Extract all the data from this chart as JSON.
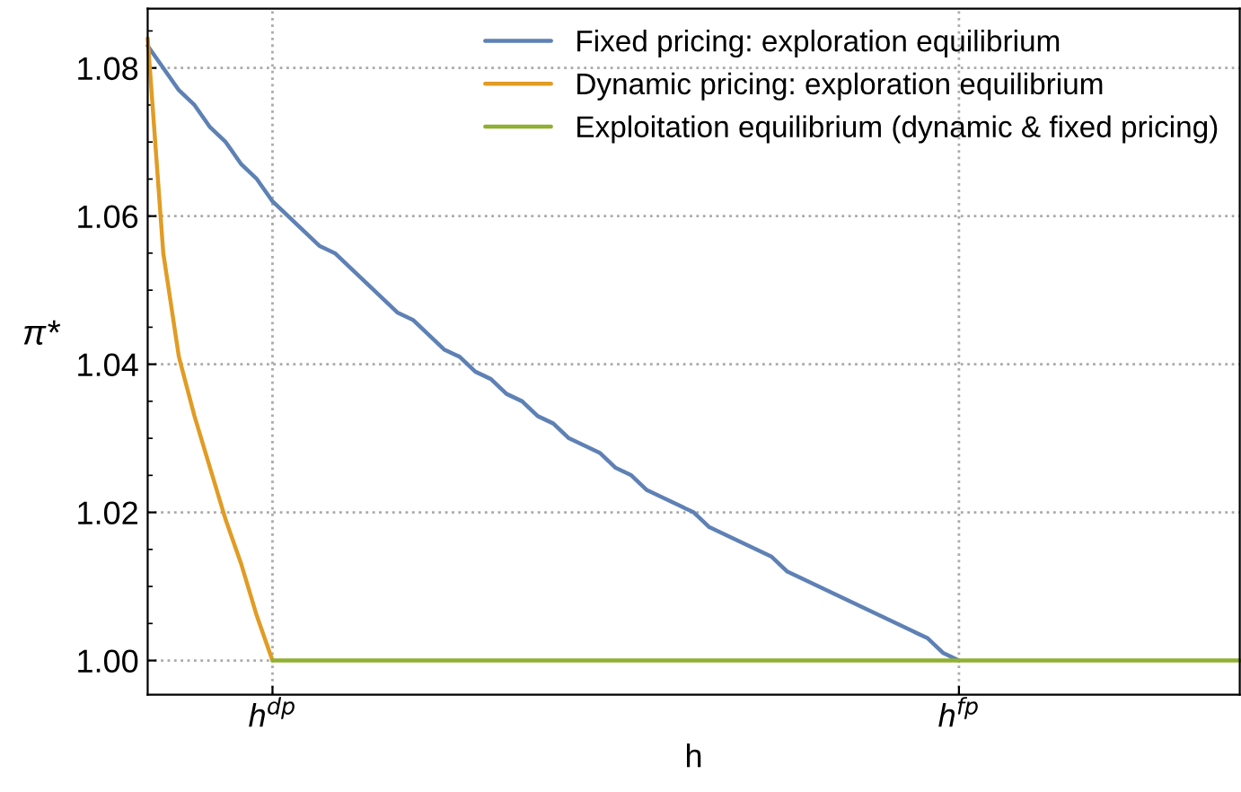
{
  "chart_data": {
    "type": "line",
    "xlabel": "h",
    "ylabel": "π*",
    "categories": [
      null,
      null,
      null,
      null,
      null,
      null,
      null,
      null,
      "h$^{dp}$",
      null,
      null,
      null,
      null,
      null,
      null,
      null,
      null,
      null,
      null,
      null,
      null,
      null,
      null,
      null,
      null,
      null,
      null,
      null,
      null,
      null,
      null,
      null,
      null,
      null,
      null,
      null,
      null,
      null,
      null,
      null,
      null,
      null,
      null,
      null,
      null,
      null,
      null,
      null,
      null,
      null,
      null,
      null,
      "h$^{fp}$",
      null,
      null,
      null,
      null,
      null,
      null,
      null,
      null,
      null,
      null,
      null,
      null,
      null,
      null,
      null,
      null,
      null,
      null
    ],
    "ylim": [
      0.9954,
      1.088
    ],
    "yticks": [
      {
        "value": 1.0,
        "label": "1.00"
      },
      {
        "value": 1.02,
        "label": "1.02"
      },
      {
        "value": 1.04,
        "label": "1.04"
      },
      {
        "value": 1.06,
        "label": "1.06"
      },
      {
        "value": 1.08,
        "label": "1.08"
      }
    ],
    "grid": true,
    "legend": "top right",
    "line_style": "solid",
    "marker": "none",
    "series": [
      {
        "name": "Fixed pricing: exploration equilibrium",
        "color": "#5e81b5",
        "values": [
          1.083,
          1.08,
          1.077,
          1.075,
          1.072,
          1.07,
          1.067,
          1.065,
          1.062,
          1.06,
          1.058,
          1.056,
          1.055,
          1.053,
          1.051,
          1.049,
          1.047,
          1.046,
          1.044,
          1.042,
          1.041,
          1.039,
          1.038,
          1.036,
          1.035,
          1.033,
          1.032,
          1.03,
          1.029,
          1.028,
          1.026,
          1.025,
          1.023,
          1.022,
          1.021,
          1.02,
          1.018,
          1.017,
          1.016,
          1.015,
          1.014,
          1.012,
          1.011,
          1.01,
          1.009,
          1.008,
          1.007,
          1.006,
          1.005,
          1.004,
          1.003,
          1.001,
          1.0,
          null,
          null,
          null,
          null,
          null,
          null,
          null,
          null,
          null,
          null,
          null,
          null,
          null,
          null,
          null,
          null,
          null,
          null
        ]
      },
      {
        "name": "Dynamic pricing: exploration equilibrium",
        "color": "#e19c24",
        "values": [
          1.084,
          1.055,
          1.041,
          1.033,
          1.026,
          1.019,
          1.013,
          1.006,
          1.0,
          null,
          null,
          null,
          null,
          null,
          null,
          null,
          null,
          null,
          null,
          null,
          null,
          null,
          null,
          null,
          null,
          null,
          null,
          null,
          null,
          null,
          null,
          null,
          null,
          null,
          null,
          null,
          null,
          null,
          null,
          null,
          null,
          null,
          null,
          null,
          null,
          null,
          null,
          null,
          null,
          null,
          null,
          null,
          null,
          null,
          null,
          null,
          null,
          null,
          null,
          null,
          null,
          null,
          null,
          null,
          null,
          null,
          null,
          null,
          null,
          null,
          null
        ]
      },
      {
        "name": "Exploitation equilibrium (dynamic & fixed pricing)",
        "color": "#8fb032",
        "values": [
          null,
          null,
          null,
          null,
          null,
          null,
          null,
          null,
          1.0,
          1.0,
          1.0,
          1.0,
          1.0,
          1.0,
          1.0,
          1.0,
          1.0,
          1.0,
          1.0,
          1.0,
          1.0,
          1.0,
          1.0,
          1.0,
          1.0,
          1.0,
          1.0,
          1.0,
          1.0,
          1.0,
          1.0,
          1.0,
          1.0,
          1.0,
          1.0,
          1.0,
          1.0,
          1.0,
          1.0,
          1.0,
          1.0,
          1.0,
          1.0,
          1.0,
          1.0,
          1.0,
          1.0,
          1.0,
          1.0,
          1.0,
          1.0,
          1.0,
          1.0,
          1.0,
          1.0,
          1.0,
          1.0,
          1.0,
          1.0,
          1.0,
          1.0,
          1.0,
          1.0,
          1.0,
          1.0,
          1.0,
          1.0,
          1.0,
          1.0,
          1.0,
          1.0
        ]
      }
    ]
  }
}
